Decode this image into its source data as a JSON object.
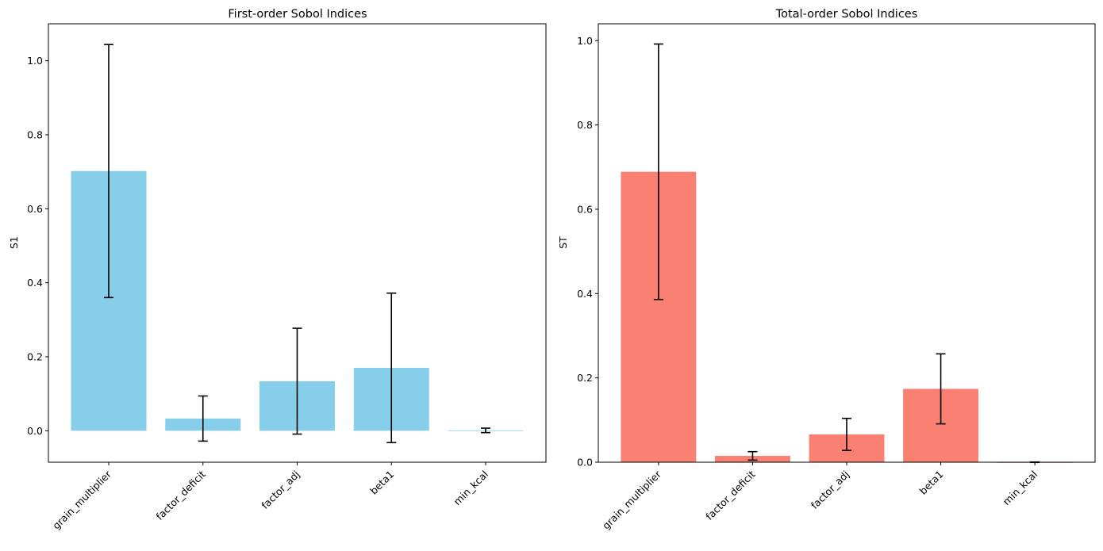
{
  "chart_data": [
    {
      "type": "bar",
      "title": "First-order Sobol Indices",
      "xlabel": "",
      "ylabel": "S1",
      "categories": [
        "grain_multiplier",
        "factor_deficit",
        "factor_adj",
        "beta1",
        "min_kcal"
      ],
      "values": [
        0.702,
        0.033,
        0.134,
        0.17,
        0.001
      ],
      "errors": [
        0.342,
        0.061,
        0.143,
        0.202,
        0.006
      ],
      "ylim": [
        -0.085,
        1.1
      ],
      "yticks": [
        0.0,
        0.2,
        0.4,
        0.6,
        0.8,
        1.0
      ],
      "ytick_labels": [
        "0.0",
        "0.2",
        "0.4",
        "0.6",
        "0.8",
        "1.0"
      ],
      "color": "#87CEEB",
      "grid": false
    },
    {
      "type": "bar",
      "title": "Total-order Sobol Indices",
      "xlabel": "",
      "ylabel": "ST",
      "categories": [
        "grain_multiplier",
        "factor_deficit",
        "factor_adj",
        "beta1",
        "min_kcal"
      ],
      "values": [
        0.689,
        0.015,
        0.066,
        0.174,
        0.0
      ],
      "errors": [
        0.303,
        0.01,
        0.038,
        0.083,
        0.0005
      ],
      "ylim": [
        0.0,
        1.04
      ],
      "yticks": [
        0.0,
        0.2,
        0.4,
        0.6,
        0.8,
        1.0
      ],
      "ytick_labels": [
        "0.0",
        "0.2",
        "0.4",
        "0.6",
        "0.8",
        "1.0"
      ],
      "color": "#FA8072",
      "grid": false
    }
  ]
}
